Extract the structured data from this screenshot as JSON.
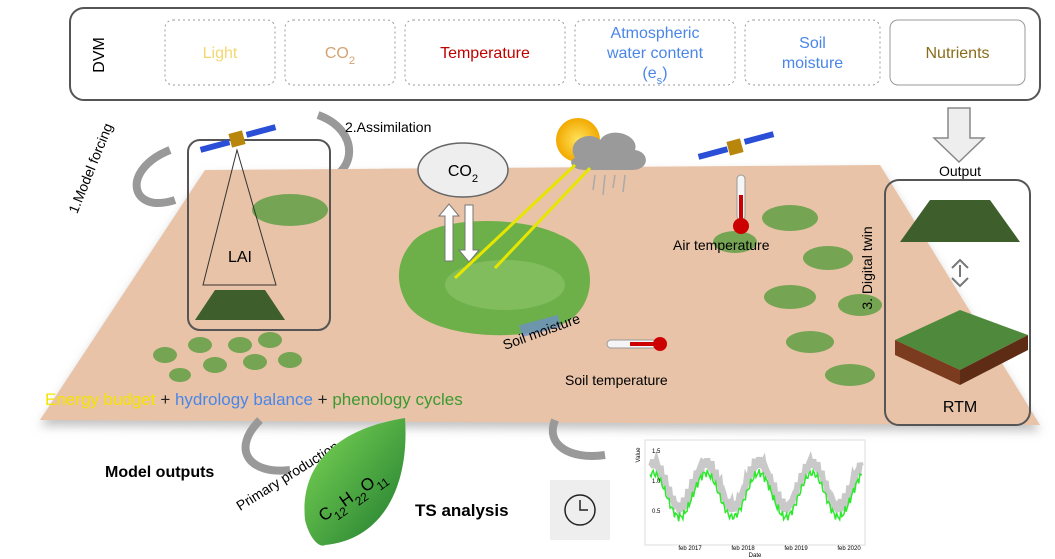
{
  "dvm": {
    "label": "DVM",
    "drivers": [
      {
        "parts": [
          "Light"
        ]
      },
      {
        "parts": [
          "CO",
          "2"
        ]
      },
      {
        "parts": [
          "Temperature"
        ]
      },
      {
        "lines": [
          "Atmospheric",
          "water content"
        ],
        "parts": [
          "(e",
          "s",
          ")"
        ]
      },
      {
        "lines": [
          "Soil",
          "moisture"
        ]
      },
      {
        "parts": [
          "Nutrients"
        ]
      }
    ]
  },
  "steps": {
    "forcing": "1.Model forcing",
    "assimilation": "2.Assimilation",
    "output": "Output",
    "twin": "3. Digital twin"
  },
  "scene": {
    "lai": "LAI",
    "co2": [
      "CO",
      "2"
    ],
    "air_temperature": "Air temperature",
    "soil_moisture": "Soil moisture",
    "soil_temperature": "Soil temperature",
    "rtm": "RTM",
    "balance": [
      "Energy budget",
      " + ",
      "hydrology balance",
      " + ",
      "phenology cycles"
    ]
  },
  "outputs": {
    "model_outputs": "Model outputs",
    "primary_production": "Primary production",
    "formula": [
      "C",
      "12",
      "H",
      "22",
      "O",
      "11"
    ],
    "ts_analysis": "TS analysis"
  },
  "ts_chart": {
    "y_label": "Value",
    "x_label": "Date",
    "yticks": [
      "1.5",
      "1.0",
      "0.5"
    ],
    "xticks": [
      "feb 2017",
      "feb 2018",
      "feb 2019",
      "feb 2020"
    ]
  }
}
